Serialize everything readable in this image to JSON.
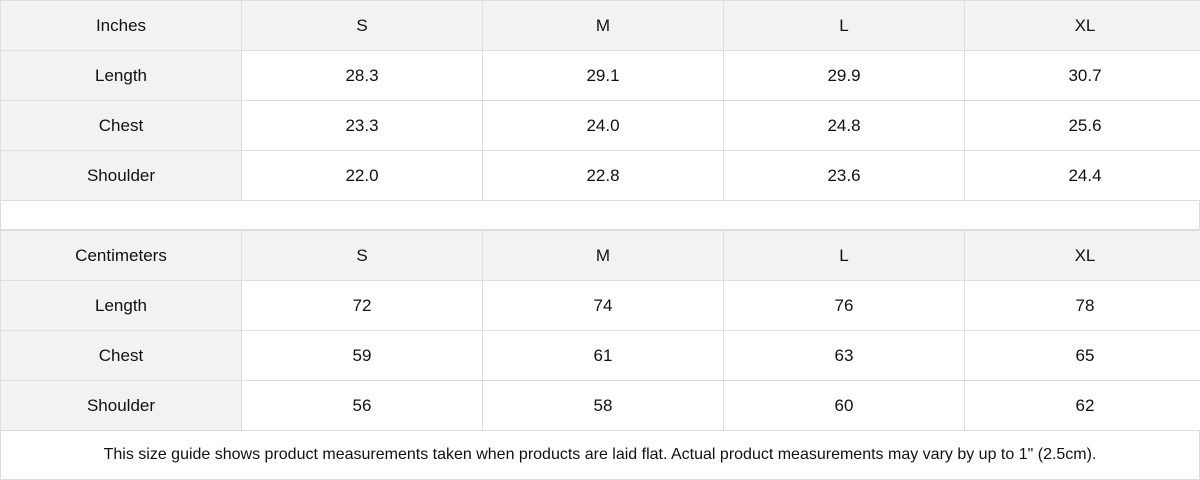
{
  "inches": {
    "headers": [
      "Inches",
      "S",
      "M",
      "L",
      "XL"
    ],
    "rows": [
      [
        "Length",
        "28.3",
        "29.1",
        "29.9",
        "30.7"
      ],
      [
        "Chest",
        "23.3",
        "24.0",
        "24.8",
        "25.6"
      ],
      [
        "Shoulder",
        "22.0",
        "22.8",
        "23.6",
        "24.4"
      ]
    ]
  },
  "centimeters": {
    "headers": [
      "Centimeters",
      "S",
      "M",
      "L",
      "XL"
    ],
    "rows": [
      [
        "Length",
        "72",
        "74",
        "76",
        "78"
      ],
      [
        "Chest",
        "59",
        "61",
        "63",
        "65"
      ],
      [
        "Shoulder",
        "56",
        "58",
        "60",
        "62"
      ]
    ]
  },
  "footer": "This size guide shows product measurements taken when products are laid flat.  Actual product measurements may vary by up to 1\" (2.5cm)."
}
